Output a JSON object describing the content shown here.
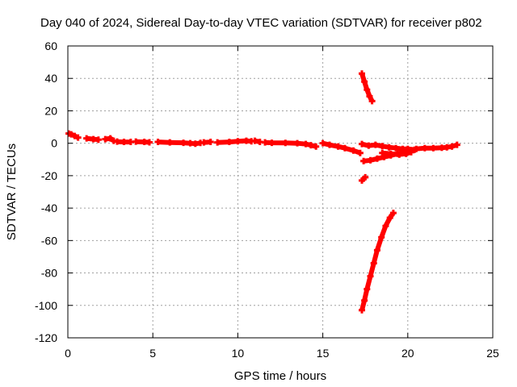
{
  "chart_data": {
    "type": "scatter",
    "title": "Day 040 of 2024, Sidereal Day-to-day VTEC variation (SDTVAR) for receiver p802",
    "xlabel": "GPS time / hours",
    "ylabel": "SDTVAR / TECUs",
    "xlim": [
      0,
      25
    ],
    "ylim": [
      -120,
      60
    ],
    "xticks": [
      0,
      5,
      10,
      15,
      20,
      25
    ],
    "yticks": [
      -120,
      -100,
      -80,
      -60,
      -40,
      -20,
      0,
      20,
      40,
      60
    ],
    "grid": true,
    "color": "#ff0000",
    "series": [
      {
        "name": "main track",
        "segments": [
          [
            [
              0.05,
              6
            ],
            [
              0.2,
              5.5
            ],
            [
              0.4,
              4.5
            ],
            [
              0.6,
              3.5
            ]
          ],
          [
            [
              1.1,
              3
            ],
            [
              1.5,
              2.5
            ],
            [
              1.8,
              2.2
            ]
          ],
          [
            [
              2.2,
              2.5
            ],
            [
              2.5,
              3
            ],
            [
              2.7,
              1.5
            ]
          ],
          [
            [
              2.9,
              1
            ],
            [
              3.3,
              0.8
            ],
            [
              3.7,
              0.8
            ]
          ],
          [
            [
              4,
              1
            ],
            [
              4.5,
              0.8
            ],
            [
              4.8,
              0.6
            ]
          ],
          [
            [
              5.3,
              0.8
            ],
            [
              6,
              0.5
            ],
            [
              6.8,
              0.3
            ],
            [
              7.2,
              0
            ],
            [
              7.5,
              -0.3
            ],
            [
              7.8,
              0.2
            ]
          ],
          [
            [
              8,
              0.5
            ],
            [
              8.4,
              0.8
            ]
          ],
          [
            [
              8.8,
              0.5
            ],
            [
              9.5,
              0.8
            ],
            [
              10,
              1.2
            ],
            [
              10.5,
              1.5
            ],
            [
              10.8,
              1.2
            ]
          ],
          [
            [
              11,
              1.5
            ],
            [
              11.3,
              0.8
            ]
          ],
          [
            [
              11.6,
              0.5
            ],
            [
              12,
              0.3
            ],
            [
              12.8,
              0.2
            ],
            [
              13.5,
              0
            ],
            [
              14,
              -0.5
            ],
            [
              14.3,
              -1.2
            ],
            [
              14.6,
              -2
            ]
          ],
          [
            [
              15,
              0
            ],
            [
              15.4,
              -1
            ],
            [
              15.9,
              -2
            ],
            [
              16.3,
              -3
            ],
            [
              16.8,
              -4.5
            ],
            [
              17.2,
              -6
            ]
          ],
          [
            [
              17.4,
              -11
            ],
            [
              17.8,
              -10.5
            ],
            [
              18.2,
              -9.5
            ],
            [
              18.6,
              -8.5
            ],
            [
              19,
              -7.5
            ],
            [
              19.4,
              -6.5
            ],
            [
              19.8,
              -5.5
            ],
            [
              20.1,
              -4.5
            ],
            [
              20.5,
              -3.5
            ],
            [
              21,
              -3
            ],
            [
              21.5,
              -3
            ],
            [
              22,
              -2.8
            ],
            [
              22.3,
              -2.5
            ],
            [
              22.6,
              -2
            ],
            [
              22.9,
              -1
            ]
          ]
        ]
      },
      {
        "name": "upper branch",
        "segments": [
          [
            [
              17.3,
              -0.5
            ],
            [
              17.7,
              -1.5
            ],
            [
              18.1,
              -1
            ],
            [
              18.5,
              -1.8
            ],
            [
              18.9,
              -2.5
            ],
            [
              19.3,
              -3
            ],
            [
              19.7,
              -3.5
            ],
            [
              20,
              -3.5
            ],
            [
              20.4,
              -4
            ]
          ]
        ]
      },
      {
        "name": "lower band",
        "segments": [
          [
            [
              18.5,
              -6
            ],
            [
              19,
              -6.5
            ],
            [
              19.5,
              -7
            ],
            [
              19.9,
              -6.5
            ],
            [
              20.2,
              -5.5
            ]
          ]
        ]
      },
      {
        "name": "short arc 1",
        "segments": [
          [
            [
              17.3,
              43
            ],
            [
              17.45,
              38
            ],
            [
              17.6,
              33
            ],
            [
              17.75,
              29
            ],
            [
              17.9,
              26
            ]
          ]
        ]
      },
      {
        "name": "short arc 2",
        "segments": [
          [
            [
              17.3,
              -23
            ],
            [
              17.5,
              -21
            ]
          ]
        ]
      },
      {
        "name": "short arc 3",
        "segments": [
          [
            [
              17.3,
              -103
            ],
            [
              17.45,
              -97
            ],
            [
              17.6,
              -90
            ],
            [
              17.8,
              -82
            ],
            [
              18,
              -74
            ],
            [
              18.2,
              -66
            ],
            [
              18.45,
              -58
            ],
            [
              18.7,
              -51
            ],
            [
              18.95,
              -46
            ],
            [
              19.15,
              -43
            ]
          ]
        ]
      }
    ]
  }
}
